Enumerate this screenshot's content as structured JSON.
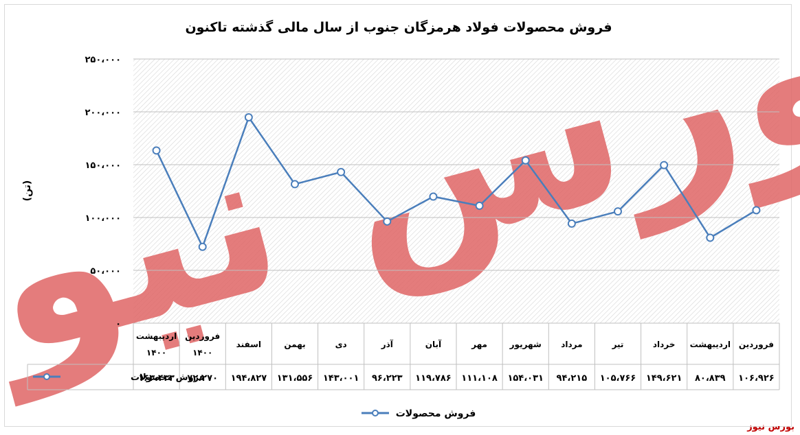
{
  "chart_data": {
    "type": "line",
    "title": "فروش محصولات فولاد هرمزگان جنوب از سال مالی گذشته تاکنون",
    "ylabel": "(تن)",
    "ylim": [
      0,
      250000
    ],
    "ytick_values": [
      0,
      50000,
      100000,
      150000,
      200000,
      250000
    ],
    "ytick_labels": [
      "۰",
      "۵۰،۰۰۰",
      "۱۰۰،۰۰۰",
      "۱۵۰،۰۰۰",
      "۲۰۰،۰۰۰",
      "۲۵۰،۰۰۰"
    ],
    "categories": [
      "فروردین",
      "اردیبهشت",
      "خرداد",
      "تیر",
      "مرداد",
      "شهریور",
      "مهر",
      "آبان",
      "آذر",
      "دی",
      "بهمن",
      "اسفند",
      "فروردین ۱۴۰۰",
      "اردیبهشت ۱۴۰۰"
    ],
    "series": [
      {
        "name": "فروش محصولات",
        "color": "#4a7ebb",
        "values": [
          106926,
          80839,
          149621,
          105766,
          94215,
          154031,
          111108,
          119786,
          96223,
          143001,
          131556,
          194827,
          72270,
          163433
        ],
        "labels": [
          "۱۰۶،۹۲۶",
          "۸۰،۸۳۹",
          "۱۴۹،۶۲۱",
          "۱۰۵،۷۶۶",
          "۹۴،۲۱۵",
          "۱۵۴،۰۳۱",
          "۱۱۱،۱۰۸",
          "۱۱۹،۷۸۶",
          "۹۶،۲۲۳",
          "۱۴۳،۰۰۱",
          "۱۳۱،۵۵۶",
          "۱۹۴،۸۲۷",
          "۷۲،۲۷۰",
          "۱۶۳،۴۳۳"
        ]
      }
    ],
    "grid": true,
    "legend": "bottom",
    "data_table": true
  },
  "watermark": "بورس نیوز",
  "source_label": "بورس نیوز"
}
